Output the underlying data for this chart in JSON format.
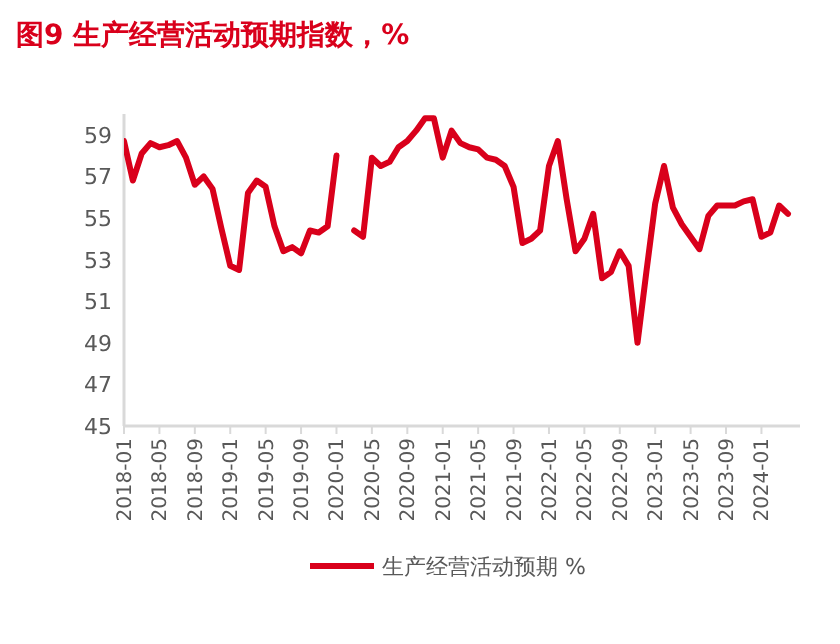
{
  "chart_data": {
    "type": "line",
    "title": "图9  生产经营活动预期指数，%",
    "categories": [
      "2018-01",
      null,
      null,
      null,
      "2018-05",
      null,
      null,
      null,
      "2018-09",
      null,
      null,
      null,
      "2019-01",
      null,
      null,
      null,
      "2019-05",
      null,
      null,
      null,
      "2019-09",
      null,
      null,
      null,
      "2020-01",
      null,
      null,
      null,
      "2020-05",
      null,
      null,
      null,
      "2020-09",
      null,
      null,
      null,
      "2021-01",
      null,
      null,
      null,
      "2021-05",
      null,
      null,
      null,
      "2021-09",
      null,
      null,
      null,
      "2022-01",
      null,
      null,
      null,
      "2022-05",
      null,
      null,
      null,
      "2022-09",
      null,
      null,
      null,
      "2023-01",
      null,
      null,
      null,
      "2023-05",
      null,
      null,
      null,
      "2023-09",
      null,
      null,
      null,
      "2024-01",
      null,
      null,
      null
    ],
    "series": [
      {
        "name": "生产经营活动预期 %",
        "color": "#d9001b",
        "values": [
          58.7,
          56.8,
          58.1,
          58.6,
          58.4,
          58.5,
          58.7,
          57.9,
          56.6,
          57.0,
          56.4,
          54.5,
          52.7,
          52.5,
          56.2,
          56.8,
          56.5,
          54.6,
          53.4,
          53.6,
          53.3,
          54.4,
          54.3,
          54.6,
          58.0,
          null,
          54.4,
          54.1,
          57.9,
          57.5,
          57.7,
          58.4,
          58.7,
          59.2,
          59.8,
          59.8,
          57.9,
          59.2,
          58.6,
          58.4,
          58.3,
          57.9,
          57.8,
          57.5,
          56.5,
          53.8,
          54.0,
          54.4,
          57.5,
          58.7,
          55.9,
          53.4,
          54.0,
          55.2,
          52.1,
          52.4,
          53.4,
          52.7,
          49.0,
          52.4,
          55.7,
          57.5,
          55.5,
          54.7,
          54.1,
          53.5,
          55.1,
          55.6,
          55.6,
          55.6,
          55.8,
          55.9,
          54.1,
          54.3,
          55.6,
          55.2
        ]
      }
    ],
    "ylim": [
      45,
      60
    ],
    "yticks": [
      45,
      47,
      49,
      51,
      53,
      55,
      57,
      59
    ],
    "legend": "bottom"
  }
}
